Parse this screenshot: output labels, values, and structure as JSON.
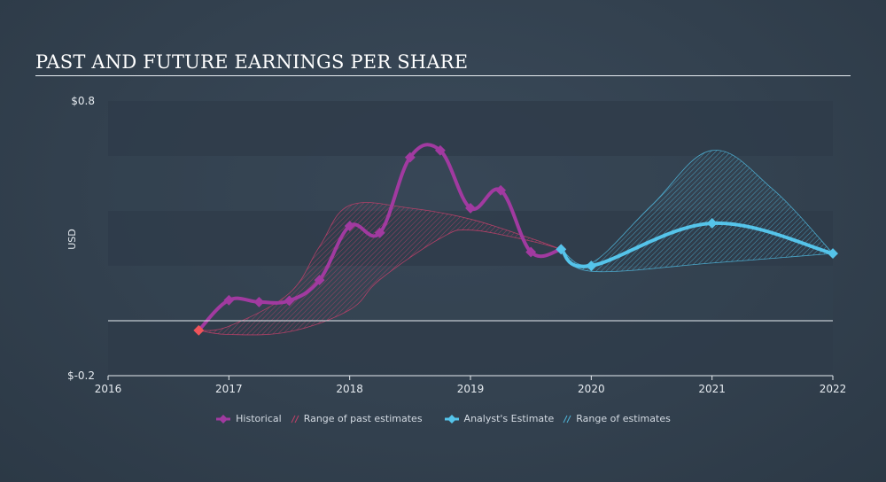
{
  "title": "PAST AND FUTURE EARNINGS PER SHARE",
  "legend": {
    "historical": "Historical",
    "past_range": "Range of past estimates",
    "estimate": "Analyst's Estimate",
    "future_range": "Range of estimates"
  },
  "colors": {
    "historical": "#a13aa0",
    "past_range": "#c0406a",
    "estimate": "#55c4ea",
    "future_range": "#4fb4d8",
    "first_point": "#f0535a"
  },
  "chart_data": {
    "type": "line",
    "title": "PAST AND FUTURE EARNINGS PER SHARE",
    "ylabel": "USD",
    "xlim": [
      2016,
      2022
    ],
    "ylim": [
      -0.2,
      0.8
    ],
    "x_ticks": [
      "2016",
      "2017",
      "2018",
      "2019",
      "2020",
      "2021",
      "2022"
    ],
    "y_ticks": [
      "$0.8",
      "$-0.2"
    ],
    "zero_line": 0,
    "series": [
      {
        "name": "Historical",
        "x": [
          2016.75,
          2017.0,
          2017.25,
          2017.5,
          2017.75,
          2018.0,
          2018.25,
          2018.5,
          2018.75,
          2019.0,
          2019.25,
          2019.5,
          2019.75
        ],
        "y": [
          -0.035,
          0.075,
          0.068,
          0.073,
          0.148,
          0.345,
          0.32,
          0.595,
          0.62,
          0.41,
          0.475,
          0.25,
          0.26
        ]
      },
      {
        "name": "Analyst's Estimate",
        "x": [
          2019.75,
          2020.0,
          2021.0,
          2022.0
        ],
        "y": [
          0.26,
          0.2,
          0.355,
          0.245
        ]
      }
    ],
    "past_range": {
      "name": "Range of past estimates",
      "upper": [
        [
          2016.75,
          -0.035
        ],
        [
          2017.0,
          -0.02
        ],
        [
          2017.5,
          0.1
        ],
        [
          2017.75,
          0.27
        ],
        [
          2018.0,
          0.42
        ],
        [
          2018.5,
          0.41
        ],
        [
          2019.0,
          0.37
        ],
        [
          2019.5,
          0.3
        ],
        [
          2019.75,
          0.26
        ]
      ],
      "lower": [
        [
          2016.75,
          -0.035
        ],
        [
          2017.0,
          -0.05
        ],
        [
          2017.5,
          -0.04
        ],
        [
          2018.0,
          0.04
        ],
        [
          2018.25,
          0.15
        ],
        [
          2018.75,
          0.3
        ],
        [
          2019.0,
          0.33
        ],
        [
          2019.5,
          0.29
        ],
        [
          2019.75,
          0.26
        ]
      ]
    },
    "future_range": {
      "name": "Range of estimates",
      "upper": [
        [
          2019.75,
          0.26
        ],
        [
          2020.0,
          0.21
        ],
        [
          2020.5,
          0.42
        ],
        [
          2021.0,
          0.62
        ],
        [
          2021.5,
          0.48
        ],
        [
          2022.0,
          0.245
        ]
      ],
      "lower": [
        [
          2019.75,
          0.26
        ],
        [
          2020.0,
          0.18
        ],
        [
          2021.0,
          0.21
        ],
        [
          2022.0,
          0.245
        ]
      ]
    }
  }
}
